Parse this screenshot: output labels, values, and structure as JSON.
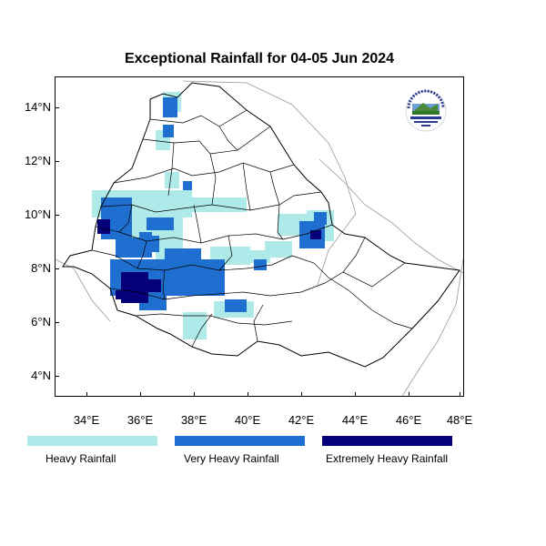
{
  "title": "Exceptional Rainfall for 04-05 Jun 2024",
  "axes": {
    "y_ticks": [
      "4°N",
      "6°N",
      "8°N",
      "10°N",
      "12°N",
      "14°N"
    ],
    "x_ticks": [
      "34°E",
      "36°E",
      "38°E",
      "40°E",
      "42°E",
      "44°E",
      "46°E",
      "48°E"
    ]
  },
  "legend": [
    {
      "label": "Heavy Rainfall",
      "color": "#aeeaea"
    },
    {
      "label": "Very Heavy Rainfall",
      "color": "#1f6fd0"
    },
    {
      "label": "Extremely Heavy Rainfall",
      "color": "#05007a"
    }
  ],
  "colors": {
    "boundary": "#000000",
    "neighbor_border": "#9a9a9a",
    "background": "#ffffff"
  },
  "logo_icon": "ethiopian-meteorology-institute-logo"
}
